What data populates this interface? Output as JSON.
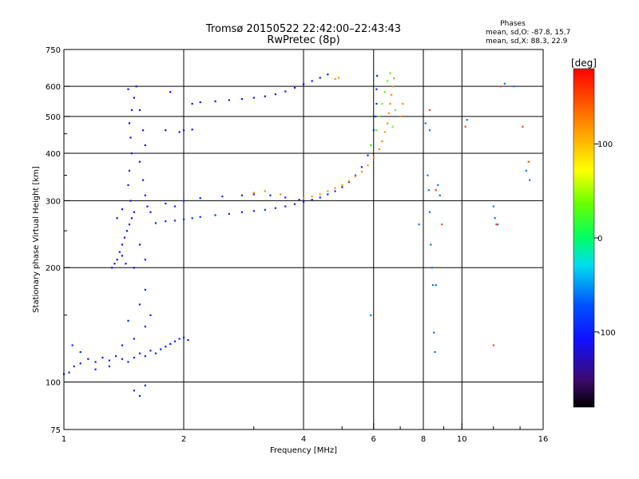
{
  "chart_data": {
    "type": "scatter",
    "title": "Tromsø 20150522 22:42:00–22:43:43",
    "subtitle": "RwPretec (8p)",
    "xlabel": "Frequency [MHz]",
    "ylabel": "Stationary phase Virtual Height [km]",
    "x_scale": "log",
    "y_scale": "log",
    "xlim": [
      1,
      16
    ],
    "ylim": [
      75,
      750
    ],
    "x_ticks": [
      1,
      2,
      4,
      6,
      8,
      10,
      16
    ],
    "x_tick_labels": [
      "1",
      "2",
      "4",
      "6",
      "8",
      "10",
      "16"
    ],
    "x_grid": [
      2,
      4,
      6,
      8,
      10
    ],
    "y_ticks": [
      75,
      100,
      200,
      300,
      400,
      500,
      600,
      750
    ],
    "y_tick_labels": [
      "75",
      "100",
      "200",
      "300",
      "400",
      "500",
      "600",
      "750"
    ],
    "grid": true,
    "phases": {
      "heading": "Phases",
      "o_line": "mean, sd,O: -87.8, 15.7",
      "x_line": "mean, sd,X: 88.3, 22.9"
    },
    "colorbar": {
      "unit": "[deg]",
      "range": [
        -180,
        180
      ],
      "ticks": [
        100,
        0,
        -100
      ],
      "tick_labels": [
        "100",
        "0",
        "-100"
      ]
    },
    "series": [
      {
        "trace": "o-low",
        "phase": -100,
        "points": [
          [
            1.0,
            105
          ],
          [
            1.03,
            106
          ],
          [
            1.06,
            110
          ],
          [
            1.1,
            112
          ],
          [
            1.15,
            115
          ],
          [
            1.2,
            113
          ],
          [
            1.25,
            116
          ],
          [
            1.3,
            114
          ],
          [
            1.35,
            117
          ],
          [
            1.4,
            115
          ],
          [
            1.45,
            113
          ],
          [
            1.5,
            116
          ],
          [
            1.55,
            119
          ],
          [
            1.6,
            117
          ],
          [
            1.65,
            121
          ],
          [
            1.7,
            119
          ],
          [
            1.75,
            122
          ],
          [
            1.8,
            124
          ],
          [
            1.85,
            126
          ],
          [
            1.9,
            128
          ],
          [
            1.95,
            130
          ],
          [
            2.0,
            131
          ],
          [
            2.05,
            129
          ],
          [
            1.05,
            125
          ],
          [
            1.1,
            120
          ],
          [
            1.2,
            108
          ],
          [
            1.3,
            110
          ],
          [
            1.4,
            125
          ],
          [
            1.5,
            130
          ],
          [
            1.6,
            140
          ],
          [
            1.45,
            145
          ],
          [
            1.55,
            160
          ],
          [
            1.6,
            175
          ],
          [
            1.65,
            150
          ],
          [
            1.5,
            95
          ],
          [
            1.55,
            92
          ],
          [
            1.6,
            98
          ]
        ]
      },
      {
        "trace": "o-column",
        "phase": -110,
        "points": [
          [
            1.32,
            200
          ],
          [
            1.34,
            205
          ],
          [
            1.36,
            210
          ],
          [
            1.38,
            220
          ],
          [
            1.4,
            230
          ],
          [
            1.42,
            240
          ],
          [
            1.44,
            250
          ],
          [
            1.46,
            260
          ],
          [
            1.48,
            270
          ],
          [
            1.5,
            280
          ],
          [
            1.47,
            300
          ],
          [
            1.45,
            330
          ],
          [
            1.46,
            360
          ],
          [
            1.48,
            400
          ],
          [
            1.47,
            440
          ],
          [
            1.46,
            480
          ],
          [
            1.48,
            520
          ],
          [
            1.5,
            560
          ],
          [
            1.45,
            590
          ],
          [
            1.52,
            600
          ],
          [
            1.55,
            520
          ],
          [
            1.58,
            460
          ],
          [
            1.6,
            420
          ],
          [
            1.55,
            380
          ],
          [
            1.58,
            340
          ],
          [
            1.6,
            310
          ],
          [
            1.62,
            290
          ],
          [
            1.65,
            280
          ],
          [
            1.55,
            230
          ],
          [
            1.6,
            210
          ],
          [
            1.4,
            215
          ],
          [
            1.43,
            205
          ],
          [
            1.5,
            200
          ],
          [
            1.36,
            270
          ],
          [
            1.4,
            285
          ]
        ]
      },
      {
        "trace": "o-F-trace",
        "phase": -95,
        "points": [
          [
            1.7,
            262
          ],
          [
            1.8,
            265
          ],
          [
            1.9,
            266
          ],
          [
            2.0,
            268
          ],
          [
            2.1,
            270
          ],
          [
            2.2,
            272
          ],
          [
            2.4,
            275
          ],
          [
            2.6,
            277
          ],
          [
            2.8,
            280
          ],
          [
            3.0,
            282
          ],
          [
            3.2,
            284
          ],
          [
            3.4,
            287
          ],
          [
            3.6,
            290
          ],
          [
            3.8,
            294
          ],
          [
            4.0,
            298
          ],
          [
            4.2,
            302
          ],
          [
            4.4,
            306
          ],
          [
            4.6,
            312
          ],
          [
            4.8,
            318
          ],
          [
            5.0,
            326
          ],
          [
            5.2,
            336
          ],
          [
            5.4,
            350
          ],
          [
            5.6,
            368
          ],
          [
            5.8,
            395
          ],
          [
            5.9,
            420
          ],
          [
            6.0,
            460
          ],
          [
            6.05,
            500
          ],
          [
            6.1,
            540
          ],
          [
            6.1,
            590
          ],
          [
            6.12,
            640
          ],
          [
            2.0,
            300
          ],
          [
            2.2,
            305
          ],
          [
            2.5,
            308
          ],
          [
            2.8,
            310
          ],
          [
            3.0,
            312
          ],
          [
            3.3,
            310
          ],
          [
            3.6,
            306
          ],
          [
            3.9,
            302
          ],
          [
            1.8,
            295
          ],
          [
            1.9,
            290
          ]
        ]
      },
      {
        "trace": "o-upper-trace",
        "phase": -110,
        "points": [
          [
            2.1,
            540
          ],
          [
            2.2,
            545
          ],
          [
            2.4,
            548
          ],
          [
            2.6,
            552
          ],
          [
            2.8,
            556
          ],
          [
            3.0,
            560
          ],
          [
            3.2,
            565
          ],
          [
            3.4,
            572
          ],
          [
            3.6,
            582
          ],
          [
            3.8,
            595
          ],
          [
            4.0,
            608
          ],
          [
            4.2,
            620
          ],
          [
            4.4,
            632
          ],
          [
            4.6,
            645
          ],
          [
            2.0,
            460
          ],
          [
            2.1,
            462
          ],
          [
            1.85,
            580
          ],
          [
            1.8,
            460
          ],
          [
            1.95,
            455
          ]
        ]
      },
      {
        "trace": "x-F-trace",
        "phase": 120,
        "points": [
          [
            3.0,
            315
          ],
          [
            3.2,
            318
          ],
          [
            3.5,
            312
          ],
          [
            4.0,
            305
          ],
          [
            4.2,
            308
          ],
          [
            4.4,
            312
          ],
          [
            4.6,
            318
          ],
          [
            4.8,
            324
          ],
          [
            5.0,
            330
          ],
          [
            5.2,
            338
          ],
          [
            5.4,
            348
          ],
          [
            5.6,
            358
          ],
          [
            5.8,
            372
          ],
          [
            6.0,
            390
          ],
          [
            6.2,
            410
          ],
          [
            6.3,
            430
          ],
          [
            6.4,
            455
          ],
          [
            6.5,
            480
          ],
          [
            6.55,
            510
          ],
          [
            6.6,
            540
          ],
          [
            6.65,
            570
          ],
          [
            6.7,
            600
          ],
          [
            6.75,
            630
          ],
          [
            4.8,
            628
          ],
          [
            4.9,
            632
          ],
          [
            7.0,
            500
          ],
          [
            7.1,
            540
          ]
        ]
      },
      {
        "trace": "x-mixed-trace",
        "phase": 30,
        "points": [
          [
            6.2,
            500
          ],
          [
            6.3,
            540
          ],
          [
            6.4,
            580
          ],
          [
            6.5,
            620
          ],
          [
            6.6,
            650
          ],
          [
            5.9,
            420
          ],
          [
            6.1,
            460
          ],
          [
            6.7,
            470
          ],
          [
            6.8,
            520
          ]
        ]
      },
      {
        "trace": "sporadic",
        "phase": -60,
        "points": [
          [
            8.2,
            350
          ],
          [
            8.25,
            320
          ],
          [
            8.3,
            280
          ],
          [
            8.35,
            230
          ],
          [
            8.4,
            200
          ],
          [
            8.45,
            180
          ],
          [
            8.5,
            135
          ],
          [
            8.55,
            120
          ],
          [
            8.6,
            180
          ],
          [
            8.7,
            330
          ],
          [
            8.8,
            310
          ],
          [
            12.0,
            290
          ],
          [
            12.1,
            270
          ],
          [
            12.3,
            260
          ],
          [
            12.8,
            610
          ],
          [
            13.5,
            600
          ],
          [
            14.5,
            360
          ],
          [
            14.8,
            340
          ],
          [
            10.3,
            490
          ],
          [
            5.9,
            150
          ],
          [
            7.8,
            260
          ],
          [
            8.3,
            460
          ],
          [
            8.1,
            480
          ]
        ]
      },
      {
        "trace": "sporadic-x",
        "phase": 150,
        "points": [
          [
            8.3,
            520
          ],
          [
            10.2,
            470
          ],
          [
            12.0,
            125
          ],
          [
            12.5,
            600
          ],
          [
            14.2,
            470
          ],
          [
            14.7,
            380
          ],
          [
            12.2,
            260
          ],
          [
            8.6,
            320
          ],
          [
            8.9,
            260
          ]
        ]
      }
    ]
  }
}
